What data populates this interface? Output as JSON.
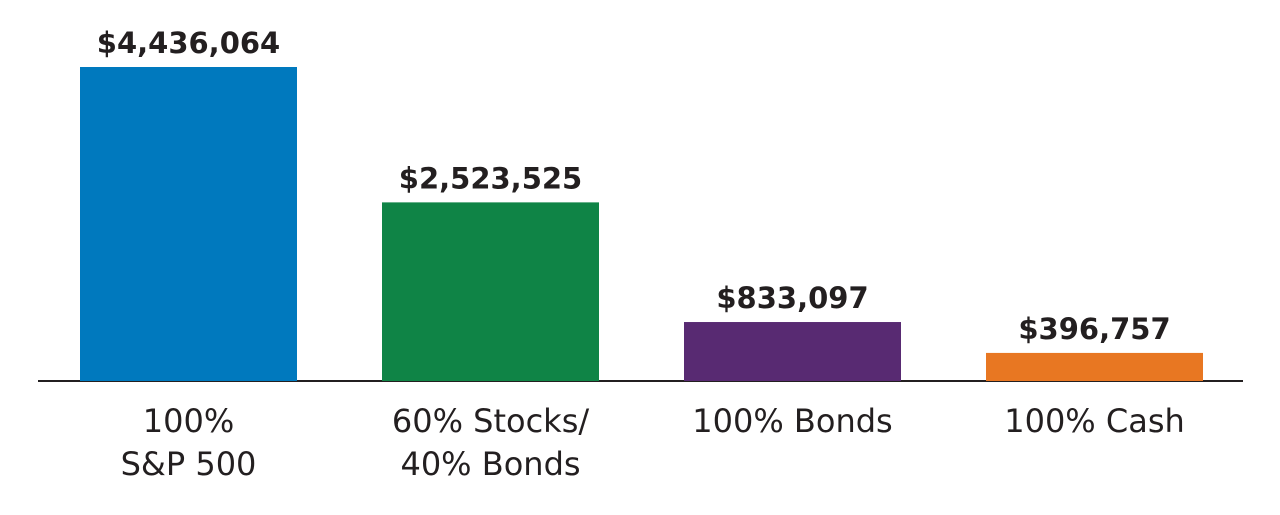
{
  "chart_data": {
    "type": "bar",
    "categories": [
      [
        "100%",
        "S&P 500"
      ],
      [
        "60% Stocks/",
        "40% Bonds"
      ],
      [
        "100% Bonds"
      ],
      [
        "100% Cash"
      ]
    ],
    "values": [
      4436064,
      2523525,
      833097,
      396757
    ],
    "value_labels": [
      "$4,436,064",
      "$2,523,525",
      "$833,097",
      "$396,757"
    ],
    "colors": [
      "#0079be",
      "#0f8446",
      "#582a72",
      "#e87722"
    ]
  }
}
